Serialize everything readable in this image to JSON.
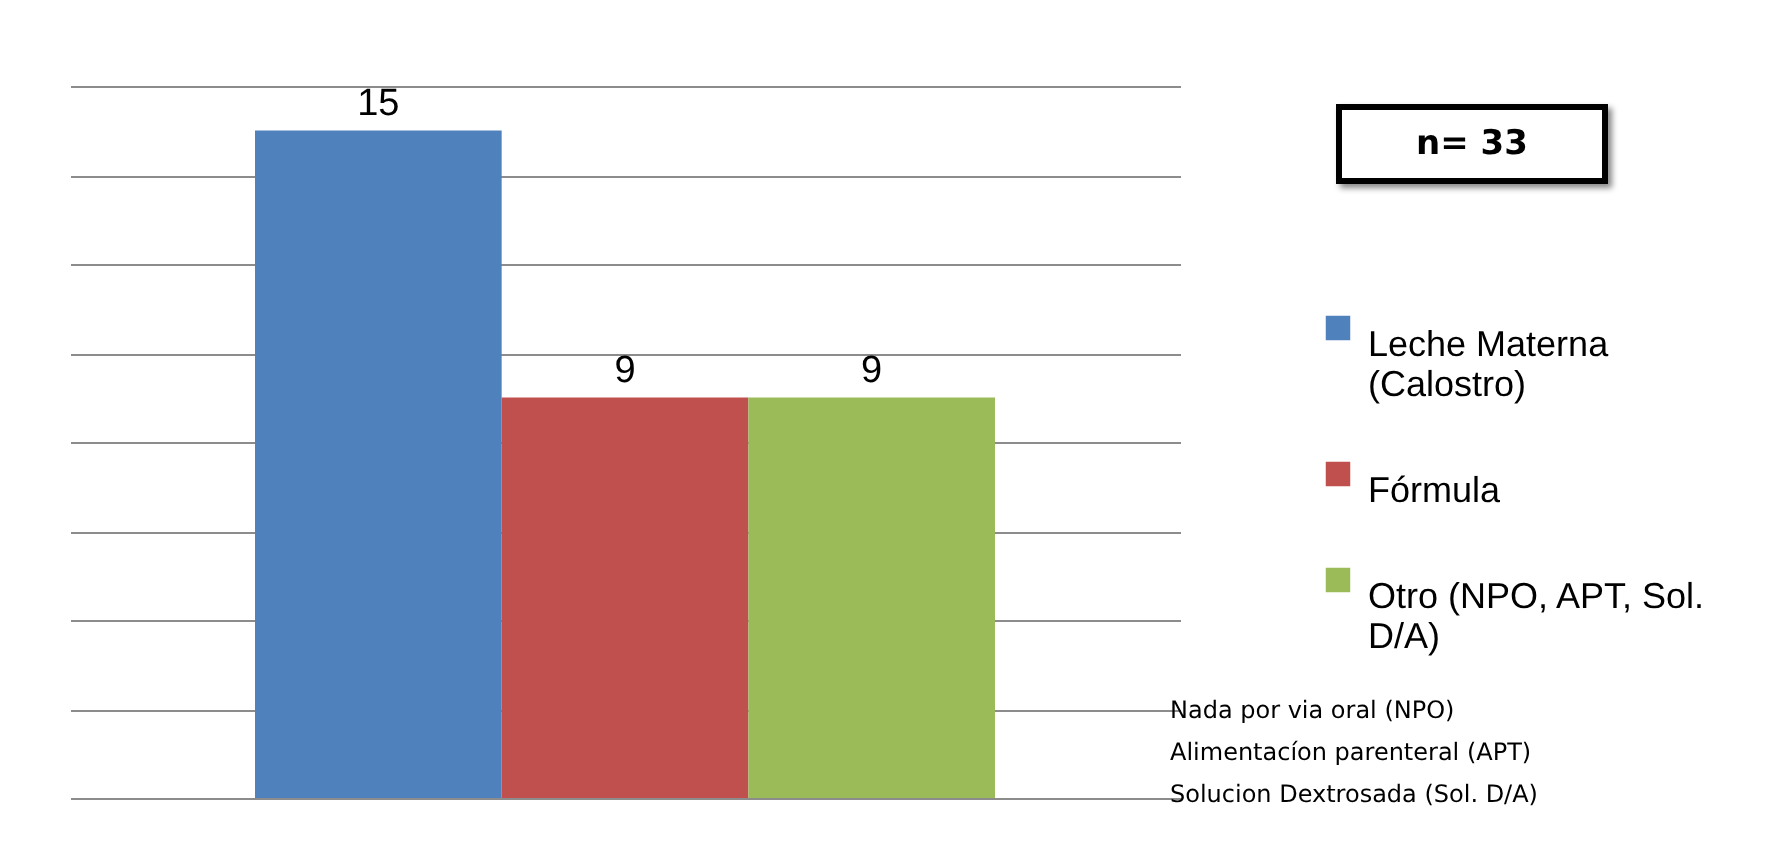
{
  "chart_data": {
    "type": "bar",
    "categories": [
      null
    ],
    "series": [
      {
        "name": "Leche Materna (Calostro)",
        "color": "#4f81bd",
        "values": [
          15
        ]
      },
      {
        "name": "Fórmula",
        "color": "#c0504d",
        "values": [
          9
        ]
      },
      {
        "name": "Otro (NPO, APT, Sol. D/A)",
        "color": "#9bbb59",
        "values": [
          9
        ]
      }
    ],
    "ylim": [
      0,
      16
    ],
    "yticks": [
      {
        "value": 0,
        "label": null
      },
      {
        "value": 2,
        "label": null
      },
      {
        "value": 4,
        "label": null
      },
      {
        "value": 6,
        "label": null
      },
      {
        "value": 8,
        "label": null
      },
      {
        "value": 10,
        "label": null
      },
      {
        "value": 12,
        "label": null
      },
      {
        "value": 14,
        "label": null
      },
      {
        "value": 16,
        "label": null
      }
    ],
    "grid": "y",
    "legend": "right",
    "tick_labels": false,
    "data_labels": true,
    "annotations": [
      "n= 33",
      "Nada por via oral (NPO)",
      "Alimentacíon parenteral (APT)",
      "Solucion Dextrosada (Sol. D/A)"
    ]
  }
}
